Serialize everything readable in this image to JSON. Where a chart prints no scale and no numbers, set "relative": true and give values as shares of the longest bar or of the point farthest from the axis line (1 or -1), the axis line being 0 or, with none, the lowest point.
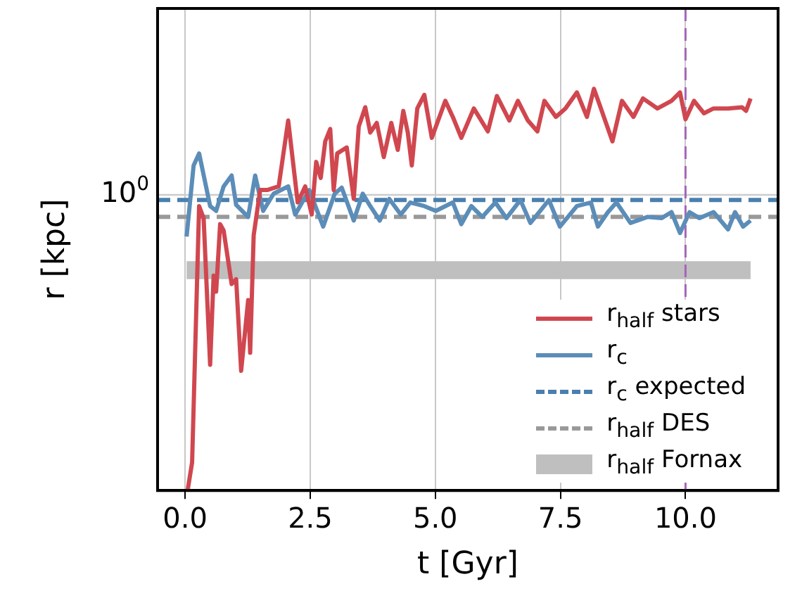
{
  "chart_data": {
    "type": "line",
    "relative": true,
    "xlabel": "t [Gyr]",
    "ylabel": "r [kpc]",
    "xlim": [
      -0.55,
      11.85
    ],
    "xticks": [
      {
        "value": 0,
        "label": "0.0"
      },
      {
        "value": 2.5,
        "label": "2.5"
      },
      {
        "value": 5,
        "label": "5.0"
      },
      {
        "value": 7.5,
        "label": "7.5"
      },
      {
        "value": 10,
        "label": "10.0"
      }
    ],
    "grid": "x",
    "legend": "bottom right",
    "series": [
      {
        "name": "r$_{half}$ stars",
        "color": "#d0474f",
        "x": [
          0.05,
          0.14,
          0.28,
          0.37,
          0.5,
          0.57,
          0.62,
          0.7,
          0.77,
          0.93,
          1.02,
          1.12,
          1.26,
          1.3,
          1.37,
          1.5,
          1.64,
          1.87,
          2.06,
          2.25,
          2.4,
          2.53,
          2.62,
          2.71,
          2.8,
          2.9,
          2.97,
          3.04,
          3.23,
          3.37,
          3.47,
          3.6,
          3.7,
          3.83,
          3.97,
          4.12,
          4.25,
          4.36,
          4.45,
          4.53,
          4.64,
          4.78,
          4.93,
          5.2,
          5.35,
          5.52,
          5.77,
          6.05,
          6.23,
          6.48,
          6.65,
          6.85,
          7.04,
          7.18,
          7.41,
          7.6,
          7.83,
          8.03,
          8.17,
          8.31,
          8.54,
          8.73,
          8.96,
          9.15,
          9.44,
          9.72,
          9.89,
          10.0,
          10.17,
          10.37,
          10.56,
          10.85,
          11.13,
          11.21,
          11.3
        ],
        "values": [
          0,
          0.07,
          0.708,
          0.678,
          0.313,
          0.535,
          0.495,
          0.663,
          0.647,
          0.514,
          0.526,
          0.298,
          0.474,
          0.343,
          0.635,
          0.748,
          0.748,
          0.757,
          0.921,
          0.717,
          0.757,
          0.687,
          0.818,
          0.778,
          0.869,
          0.9,
          0.748,
          0.839,
          0.854,
          0.726,
          0.906,
          0.954,
          0.891,
          0.915,
          0.83,
          0.915,
          0.848,
          0.945,
          0.891,
          0.809,
          0.951,
          0.985,
          0.878,
          0.97,
          0.93,
          0.878,
          0.951,
          0.894,
          0.982,
          0.921,
          0.97,
          0.921,
          0.894,
          0.97,
          0.93,
          0.951,
          0.991,
          0.93,
          1,
          0.951,
          0.869,
          0.97,
          0.93,
          0.976,
          0.951,
          0.97,
          0.991,
          0.924,
          0.97,
          0.939,
          0.951,
          0.951,
          0.954,
          0.945,
          0.976
        ]
      },
      {
        "name": "r$_{c}$",
        "color": "#5b8db8",
        "x": [
          0.03,
          0.17,
          0.28,
          0.5,
          0.62,
          0.77,
          0.93,
          1.02,
          1.26,
          1.4,
          1.56,
          1.77,
          2.06,
          2.2,
          2.48,
          2.76,
          2.99,
          3.13,
          3.37,
          3.55,
          3.7,
          3.89,
          4.08,
          4.31,
          4.5,
          4.78,
          5.01,
          5.35,
          5.52,
          5.72,
          5.94,
          6.2,
          6.42,
          6.7,
          6.9,
          7.27,
          7.49,
          7.83,
          8.11,
          8.25,
          8.45,
          8.62,
          8.9,
          9.24,
          9.52,
          9.72,
          9.89,
          10.08,
          10.28,
          10.56,
          10.85,
          10.99,
          11.15,
          11.3
        ],
        "values": [
          0.632,
          0.809,
          0.839,
          0.708,
          0.696,
          0.757,
          0.784,
          0.711,
          0.681,
          0.784,
          0.696,
          0.739,
          0.757,
          0.687,
          0.748,
          0.657,
          0.739,
          0.754,
          0.672,
          0.739,
          0.708,
          0.672,
          0.726,
          0.687,
          0.717,
          0.708,
          0.696,
          0.717,
          0.663,
          0.708,
          0.681,
          0.717,
          0.678,
          0.723,
          0.666,
          0.723,
          0.657,
          0.708,
          0.717,
          0.657,
          0.693,
          0.717,
          0.666,
          0.681,
          0.678,
          0.693,
          0.641,
          0.693,
          0.678,
          0.693,
          0.65,
          0.693,
          0.657,
          0.672
        ]
      },
      {
        "name": "r$_{c}$ expected",
        "color": "#4a7fae",
        "line_style": "dashed",
        "x": [
          -0.55,
          11.85
        ],
        "values": [
          0.723,
          0.723
        ]
      },
      {
        "name": "r$_{half}$ DES",
        "color": "#999999",
        "line_style": "dashed",
        "x": [
          -0.55,
          11.85
        ],
        "values": [
          0.681,
          0.681
        ]
      }
    ],
    "bands": [
      {
        "axis": "y",
        "from": 0.526,
        "to": 0.571,
        "label": "r$_{half}$ Fornax",
        "color": "#bfbfbf"
      }
    ],
    "ref_lines": [
      {
        "axis": "y",
        "value": 0.736,
        "color": "#cccccc"
      },
      {
        "axis": "x",
        "value": 10,
        "color": "#a566b8",
        "line_style": "dashed"
      }
    ],
    "annotations": [
      "10$^{0}$"
    ]
  }
}
